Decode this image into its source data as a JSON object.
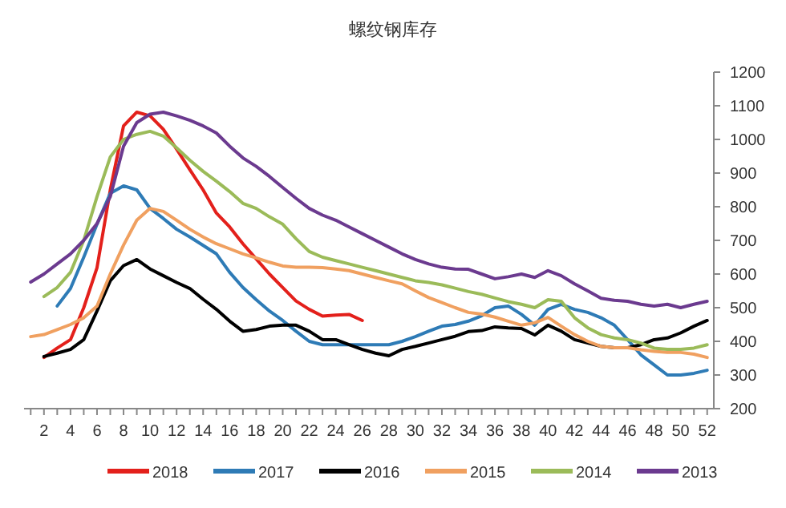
{
  "chart_data": {
    "type": "line",
    "title": "螺纹钢库存",
    "xlim": [
      0.5,
      52.5
    ],
    "xticks": [
      {
        "value": 1,
        "label": null
      },
      2,
      {
        "value": 3,
        "label": null
      },
      4,
      {
        "value": 5,
        "label": null
      },
      6,
      {
        "value": 7,
        "label": null
      },
      8,
      {
        "value": 9,
        "label": null
      },
      10,
      {
        "value": 11,
        "label": null
      },
      12,
      {
        "value": 13,
        "label": null
      },
      14,
      {
        "value": 15,
        "label": null
      },
      16,
      {
        "value": 17,
        "label": null
      },
      18,
      {
        "value": 19,
        "label": null
      },
      20,
      {
        "value": 21,
        "label": null
      },
      22,
      {
        "value": 23,
        "label": null
      },
      24,
      {
        "value": 25,
        "label": null
      },
      26,
      {
        "value": 27,
        "label": null
      },
      28,
      {
        "value": 29,
        "label": null
      },
      30,
      {
        "value": 31,
        "label": null
      },
      32,
      {
        "value": 33,
        "label": null
      },
      34,
      {
        "value": 35,
        "label": null
      },
      36,
      {
        "value": 37,
        "label": null
      },
      38,
      {
        "value": 39,
        "label": null
      },
      40,
      {
        "value": 41,
        "label": null
      },
      42,
      {
        "value": 43,
        "label": null
      },
      44,
      {
        "value": 45,
        "label": null
      },
      46,
      {
        "value": 47,
        "label": null
      },
      48,
      {
        "value": 49,
        "label": null
      },
      50,
      {
        "value": 51,
        "label": null
      },
      52
    ],
    "ylim": [
      200,
      1200
    ],
    "yticks": [
      200,
      300,
      400,
      500,
      600,
      700,
      800,
      900,
      1000,
      1100,
      1200
    ],
    "grid": false,
    "legend": "bottom",
    "marker": "none",
    "line_style": "solid",
    "series": [
      {
        "name": "2018",
        "color": "#e3201b",
        "x": [
          2,
          3,
          4,
          5,
          6,
          7,
          8,
          9,
          10,
          11,
          12,
          13,
          14,
          15,
          16,
          17,
          18,
          19,
          20,
          21,
          22,
          23,
          24,
          25,
          26
        ],
        "values": [
          352,
          380,
          405,
          500,
          619,
          850,
          1040,
          1081,
          1070,
          1030,
          971,
          910,
          850,
          781,
          740,
          690,
          645,
          600,
          560,
          520,
          495,
          475,
          478,
          480,
          462
        ]
      },
      {
        "name": "2017",
        "color": "#2e7bb6",
        "x": [
          3,
          4,
          5,
          6,
          7,
          8,
          9,
          10,
          11,
          12,
          13,
          14,
          15,
          16,
          17,
          18,
          19,
          20,
          21,
          22,
          23,
          24,
          25,
          26,
          27,
          28,
          29,
          30,
          31,
          32,
          33,
          34,
          35,
          36,
          37,
          38,
          39,
          40,
          41,
          42,
          43,
          44,
          45,
          46,
          47,
          48,
          49,
          50,
          51,
          52
        ],
        "values": [
          505,
          557,
          650,
          748,
          840,
          862,
          850,
          795,
          765,
          733,
          710,
          685,
          660,
          605,
          560,
          524,
          490,
          462,
          430,
          400,
          390,
          390,
          390,
          390,
          390,
          390,
          400,
          414,
          430,
          445,
          450,
          460,
          476,
          500,
          505,
          480,
          448,
          495,
          510,
          495,
          486,
          470,
          448,
          405,
          360,
          330,
          300,
          300,
          305,
          314
        ]
      },
      {
        "name": "2016",
        "color": "#000000",
        "x": [
          2,
          3,
          4,
          5,
          6,
          7,
          8,
          9,
          10,
          11,
          12,
          13,
          14,
          15,
          16,
          17,
          18,
          19,
          20,
          21,
          22,
          23,
          24,
          25,
          26,
          27,
          28,
          29,
          30,
          31,
          32,
          33,
          34,
          35,
          36,
          37,
          38,
          39,
          40,
          41,
          42,
          43,
          44,
          45,
          46,
          47,
          48,
          49,
          50,
          51,
          52
        ],
        "values": [
          355,
          365,
          376,
          405,
          490,
          580,
          625,
          643,
          615,
          595,
          575,
          557,
          525,
          495,
          460,
          430,
          435,
          445,
          448,
          448,
          430,
          405,
          405,
          390,
          376,
          365,
          357,
          376,
          385,
          395,
          405,
          415,
          429,
          432,
          443,
          440,
          438,
          419,
          448,
          430,
          405,
          395,
          385,
          381,
          381,
          390,
          405,
          410,
          425,
          445,
          462
        ]
      },
      {
        "name": "2015",
        "color": "#f0a060",
        "x": [
          1,
          2,
          3,
          4,
          5,
          6,
          7,
          8,
          9,
          10,
          11,
          12,
          13,
          14,
          15,
          16,
          17,
          18,
          19,
          20,
          21,
          22,
          23,
          24,
          25,
          26,
          27,
          28,
          29,
          30,
          31,
          32,
          33,
          34,
          35,
          36,
          37,
          38,
          39,
          40,
          41,
          42,
          43,
          44,
          45,
          46,
          47,
          48,
          49,
          50,
          51,
          52
        ],
        "values": [
          414,
          420,
          435,
          450,
          470,
          505,
          600,
          686,
          760,
          795,
          786,
          760,
          733,
          710,
          690,
          675,
          660,
          648,
          635,
          624,
          620,
          620,
          619,
          615,
          610,
          600,
          590,
          580,
          571,
          550,
          530,
          515,
          500,
          486,
          481,
          472,
          460,
          448,
          455,
          471,
          445,
          420,
          400,
          385,
          381,
          381,
          375,
          370,
          367,
          367,
          362,
          352
        ]
      },
      {
        "name": "2014",
        "color": "#9bbb59",
        "x": [
          2,
          3,
          4,
          5,
          6,
          7,
          8,
          9,
          10,
          11,
          12,
          13,
          14,
          15,
          16,
          17,
          18,
          19,
          20,
          21,
          22,
          23,
          24,
          25,
          26,
          27,
          28,
          29,
          30,
          31,
          32,
          33,
          34,
          35,
          36,
          37,
          38,
          39,
          40,
          41,
          42,
          43,
          44,
          45,
          46,
          47,
          48,
          49,
          50,
          51,
          52
        ],
        "values": [
          533,
          560,
          605,
          700,
          830,
          948,
          1000,
          1015,
          1024,
          1010,
          975,
          938,
          905,
          876,
          845,
          810,
          795,
          770,
          748,
          705,
          667,
          650,
          640,
          630,
          620,
          610,
          600,
          590,
          580,
          575,
          568,
          558,
          548,
          540,
          529,
          518,
          510,
          500,
          524,
          519,
          470,
          440,
          420,
          410,
          405,
          395,
          380,
          376,
          376,
          380,
          390
        ]
      },
      {
        "name": "2013",
        "color": "#6b3a8f",
        "x": [
          1,
          2,
          3,
          4,
          5,
          6,
          7,
          8,
          9,
          10,
          11,
          12,
          13,
          14,
          15,
          16,
          17,
          18,
          19,
          20,
          21,
          22,
          23,
          24,
          25,
          26,
          27,
          28,
          29,
          30,
          31,
          32,
          33,
          34,
          35,
          36,
          37,
          38,
          39,
          40,
          41,
          42,
          43,
          44,
          45,
          46,
          47,
          48,
          49,
          50,
          51,
          52
        ],
        "values": [
          576,
          600,
          630,
          660,
          700,
          750,
          830,
          980,
          1050,
          1075,
          1081,
          1070,
          1057,
          1040,
          1019,
          980,
          945,
          920,
          890,
          857,
          825,
          795,
          775,
          760,
          740,
          720,
          700,
          680,
          660,
          643,
          630,
          620,
          615,
          614,
          600,
          586,
          592,
          600,
          590,
          610,
          595,
          571,
          550,
          528,
          522,
          519,
          510,
          505,
          510,
          500,
          510,
          519
        ]
      }
    ]
  }
}
